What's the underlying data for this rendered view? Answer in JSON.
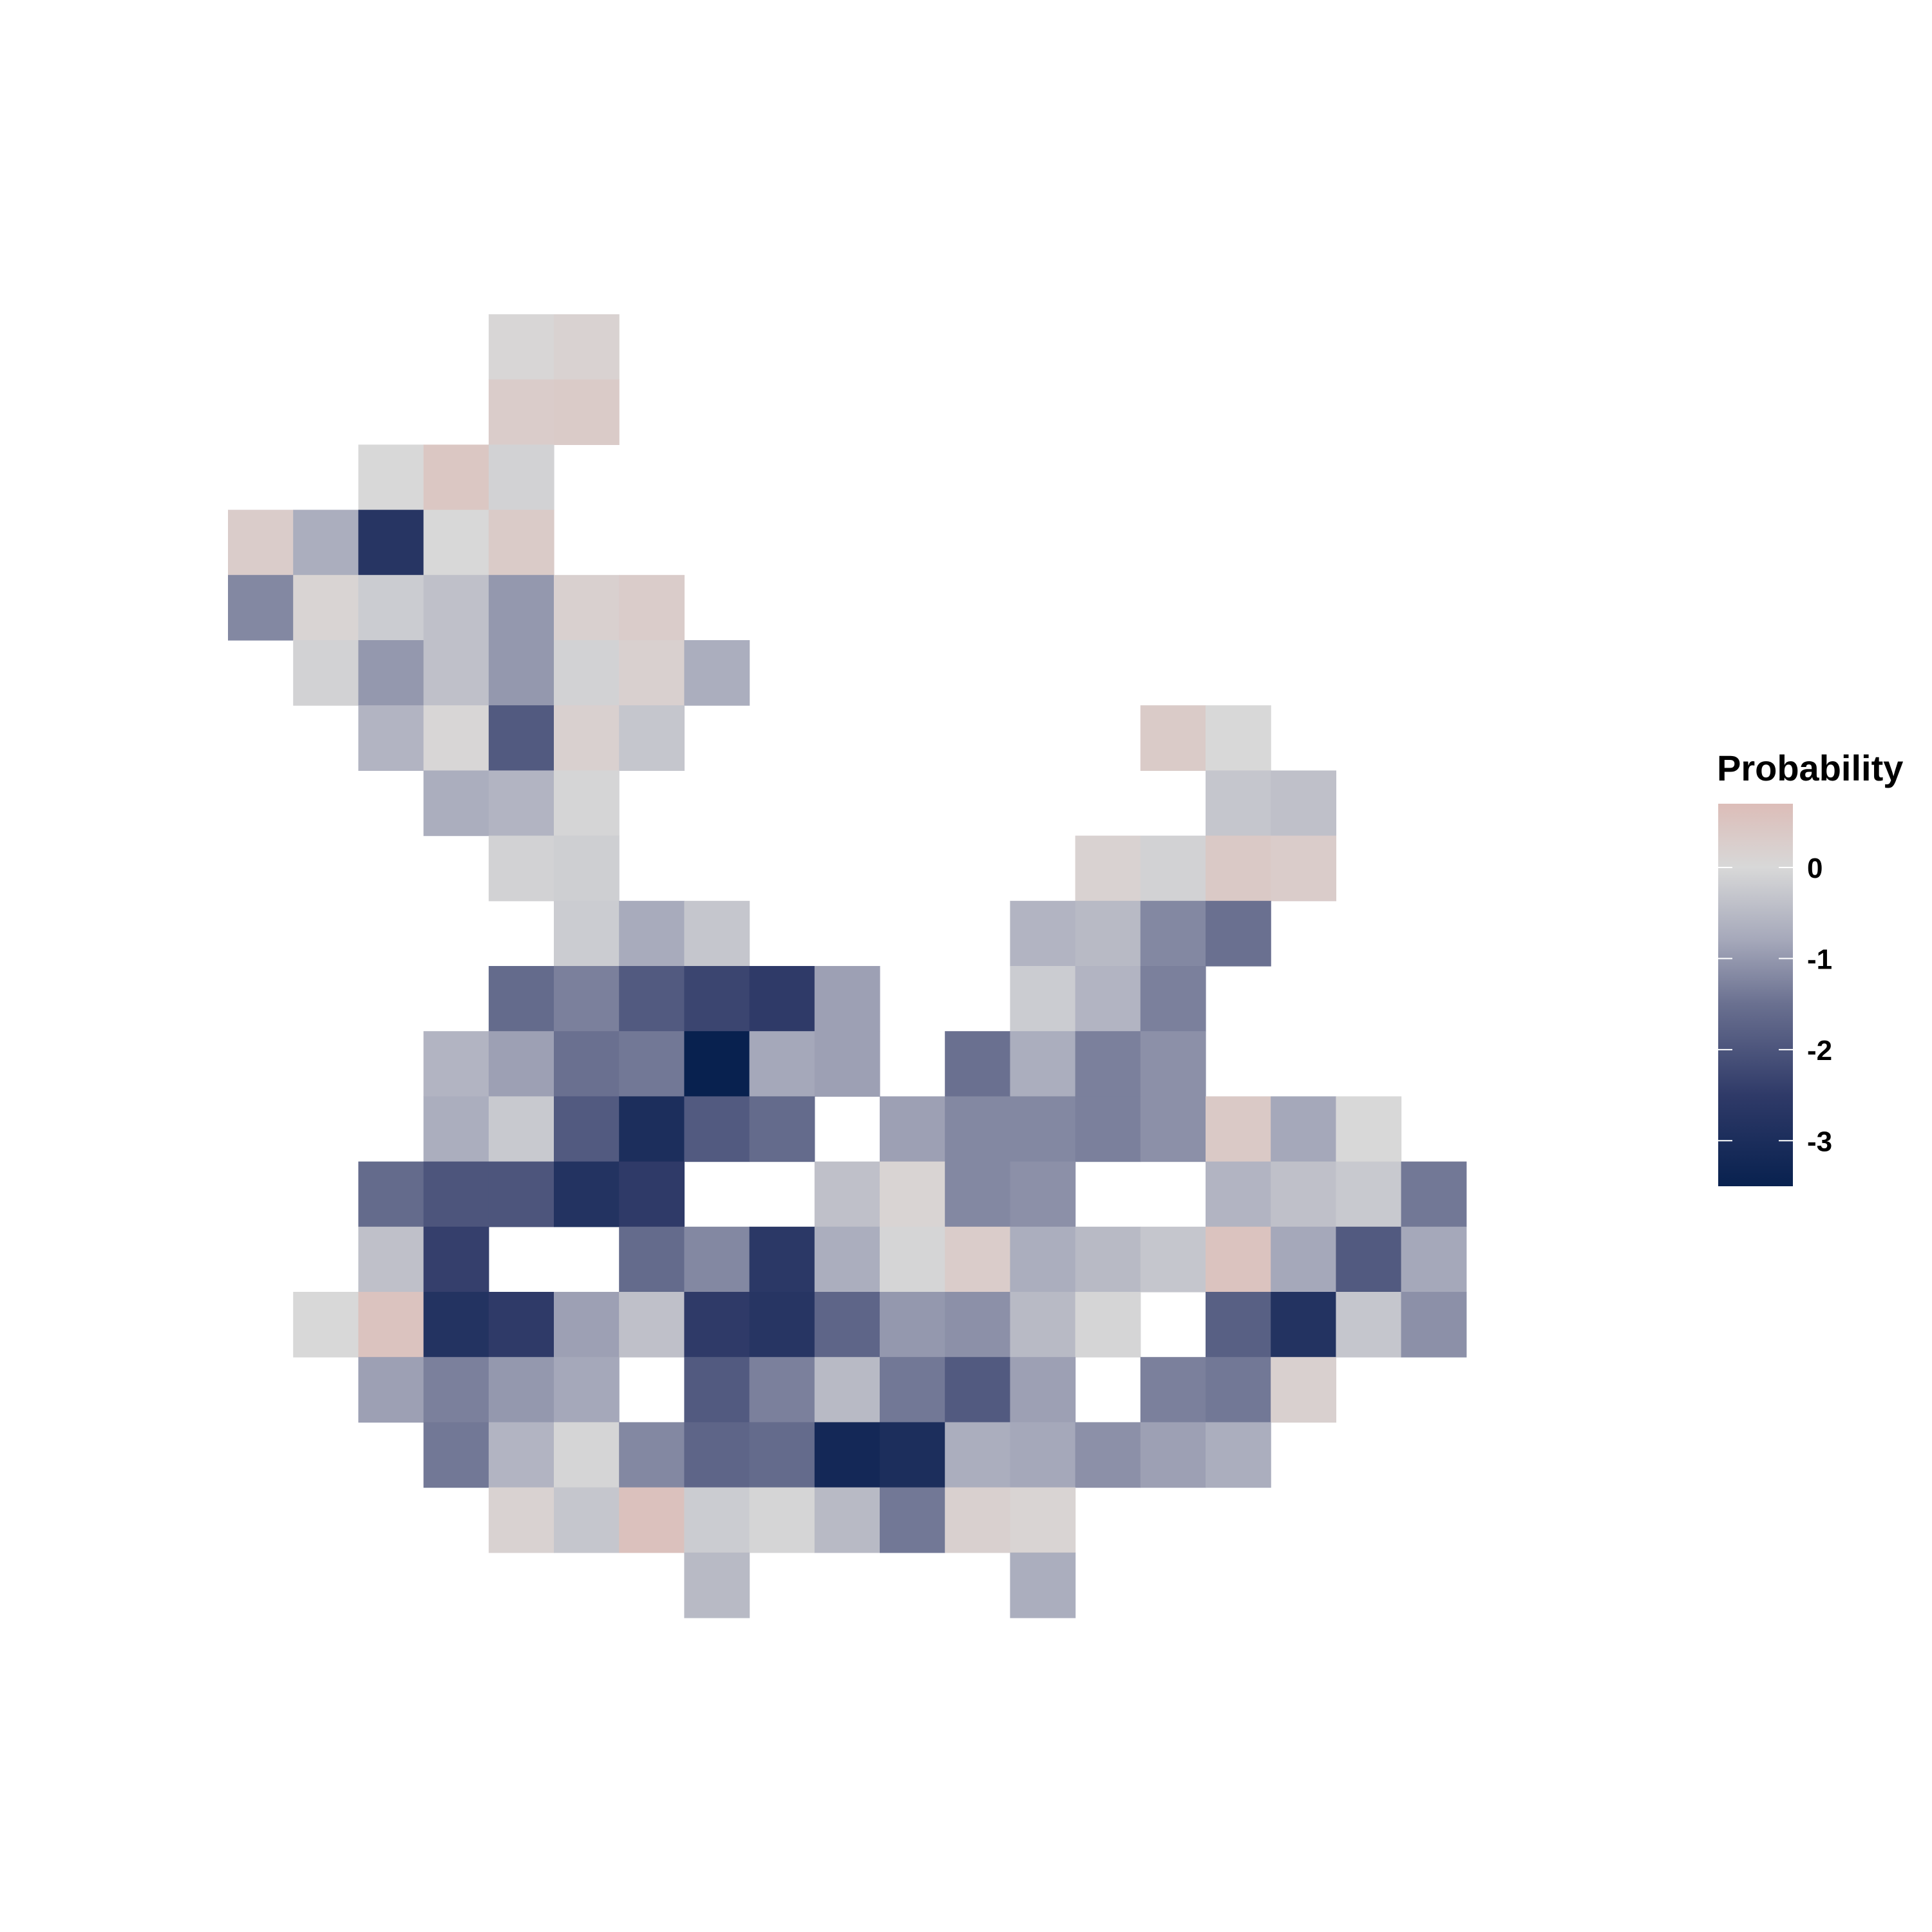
{
  "chart_data": {
    "type": "heatmap",
    "title": "",
    "xlabel": "",
    "ylabel": "",
    "legend": {
      "title": "Probability",
      "position": "right",
      "ticks": [
        {
          "value": 0,
          "label": "0"
        },
        {
          "value": -1,
          "label": "-1"
        },
        {
          "value": -2,
          "label": "-2"
        },
        {
          "value": -3,
          "label": "-3"
        }
      ],
      "range": [
        -3.5,
        0.7
      ]
    },
    "color_scale": [
      {
        "value": -3.5,
        "color": "#08214f"
      },
      {
        "value": -2.5,
        "color": "#2f3a68"
      },
      {
        "value": -1.5,
        "color": "#6a7090"
      },
      {
        "value": -0.8,
        "color": "#a5a8ba"
      },
      {
        "value": 0.0,
        "color": "#d8d8d8"
      },
      {
        "value": 0.7,
        "color": "#dcbdb8"
      }
    ],
    "grid_size": {
      "cols": 19,
      "rows": 20
    },
    "cells": [
      [
        4,
        0,
        0.05
      ],
      [
        5,
        0,
        0.15
      ],
      [
        4,
        1,
        0.3
      ],
      [
        5,
        1,
        0.35
      ],
      [
        2,
        2,
        0.0
      ],
      [
        3,
        2,
        0.45
      ],
      [
        4,
        2,
        -0.1
      ],
      [
        0,
        3,
        0.3
      ],
      [
        1,
        3,
        -0.7
      ],
      [
        2,
        3,
        -2.7
      ],
      [
        3,
        3,
        0.0
      ],
      [
        4,
        3,
        0.35
      ],
      [
        0,
        4,
        -1.2
      ],
      [
        1,
        4,
        0.1
      ],
      [
        2,
        4,
        -0.2
      ],
      [
        3,
        4,
        -0.4
      ],
      [
        4,
        4,
        -1.0
      ],
      [
        5,
        4,
        0.2
      ],
      [
        6,
        4,
        0.3
      ],
      [
        1,
        5,
        -0.1
      ],
      [
        2,
        5,
        -1.0
      ],
      [
        3,
        5,
        -0.4
      ],
      [
        4,
        5,
        -1.0
      ],
      [
        5,
        5,
        -0.1
      ],
      [
        6,
        5,
        0.2
      ],
      [
        7,
        5,
        -0.7
      ],
      [
        2,
        6,
        -0.6
      ],
      [
        3,
        6,
        0.05
      ],
      [
        4,
        6,
        -1.9
      ],
      [
        5,
        6,
        0.2
      ],
      [
        6,
        6,
        -0.3
      ],
      [
        14,
        6,
        0.35
      ],
      [
        15,
        6,
        0.0
      ],
      [
        3,
        7,
        -0.7
      ],
      [
        4,
        7,
        -0.6
      ],
      [
        5,
        7,
        -0.05
      ],
      [
        15,
        7,
        -0.3
      ],
      [
        16,
        7,
        -0.4
      ],
      [
        4,
        8,
        -0.1
      ],
      [
        5,
        8,
        -0.15
      ],
      [
        13,
        8,
        0.15
      ],
      [
        14,
        8,
        -0.1
      ],
      [
        15,
        8,
        0.4
      ],
      [
        16,
        8,
        0.3
      ],
      [
        5,
        9,
        -0.2
      ],
      [
        6,
        9,
        -0.75
      ],
      [
        7,
        9,
        -0.3
      ],
      [
        12,
        9,
        -0.6
      ],
      [
        13,
        9,
        -0.5
      ],
      [
        14,
        9,
        -1.2
      ],
      [
        15,
        9,
        -1.5
      ],
      [
        4,
        10,
        -1.6
      ],
      [
        5,
        10,
        -1.3
      ],
      [
        6,
        10,
        -1.9
      ],
      [
        7,
        10,
        -2.3
      ],
      [
        8,
        10,
        -2.5
      ],
      [
        9,
        10,
        -0.9
      ],
      [
        12,
        10,
        -0.2
      ],
      [
        13,
        10,
        -0.6
      ],
      [
        14,
        10,
        -1.3
      ],
      [
        3,
        11,
        -0.6
      ],
      [
        4,
        11,
        -0.9
      ],
      [
        5,
        11,
        -1.5
      ],
      [
        6,
        11,
        -1.4
      ],
      [
        7,
        11,
        -3.5
      ],
      [
        8,
        11,
        -0.8
      ],
      [
        9,
        11,
        -0.9
      ],
      [
        11,
        11,
        -1.5
      ],
      [
        12,
        11,
        -0.7
      ],
      [
        13,
        11,
        -1.3
      ],
      [
        14,
        11,
        -1.1
      ],
      [
        3,
        12,
        -0.7
      ],
      [
        4,
        12,
        -0.25
      ],
      [
        5,
        12,
        -1.9
      ],
      [
        6,
        12,
        -3.0
      ],
      [
        7,
        12,
        -1.9
      ],
      [
        8,
        12,
        -1.6
      ],
      [
        10,
        12,
        -0.9
      ],
      [
        11,
        12,
        -1.2
      ],
      [
        12,
        12,
        -1.2
      ],
      [
        13,
        12,
        -1.3
      ],
      [
        14,
        12,
        -1.1
      ],
      [
        15,
        12,
        0.4
      ],
      [
        16,
        12,
        -0.8
      ],
      [
        17,
        12,
        0.0
      ],
      [
        2,
        13,
        -1.6
      ],
      [
        3,
        13,
        -2.0
      ],
      [
        4,
        13,
        -2.0
      ],
      [
        5,
        13,
        -2.8
      ],
      [
        6,
        13,
        -2.5
      ],
      [
        9,
        13,
        -0.4
      ],
      [
        10,
        13,
        0.1
      ],
      [
        11,
        13,
        -1.2
      ],
      [
        12,
        13,
        -1.1
      ],
      [
        15,
        13,
        -0.6
      ],
      [
        16,
        13,
        -0.4
      ],
      [
        17,
        13,
        -0.25
      ],
      [
        18,
        13,
        -1.4
      ],
      [
        2,
        14,
        -0.4
      ],
      [
        3,
        14,
        -2.4
      ],
      [
        6,
        14,
        -1.6
      ],
      [
        7,
        14,
        -1.2
      ],
      [
        8,
        14,
        -2.6
      ],
      [
        9,
        14,
        -0.7
      ],
      [
        10,
        14,
        -0.05
      ],
      [
        11,
        14,
        0.3
      ],
      [
        12,
        14,
        -0.7
      ],
      [
        13,
        14,
        -0.5
      ],
      [
        14,
        14,
        -0.3
      ],
      [
        15,
        14,
        0.55
      ],
      [
        16,
        14,
        -0.8
      ],
      [
        17,
        14,
        -1.9
      ],
      [
        18,
        14,
        -0.8
      ],
      [
        1,
        15,
        0.0
      ],
      [
        2,
        15,
        0.55
      ],
      [
        3,
        15,
        -2.8
      ],
      [
        4,
        15,
        -2.5
      ],
      [
        5,
        15,
        -0.9
      ],
      [
        6,
        15,
        -0.4
      ],
      [
        7,
        15,
        -2.5
      ],
      [
        8,
        15,
        -2.7
      ],
      [
        9,
        15,
        -1.7
      ],
      [
        10,
        15,
        -1.0
      ],
      [
        11,
        15,
        -1.1
      ],
      [
        12,
        15,
        -0.5
      ],
      [
        13,
        15,
        -0.05
      ],
      [
        15,
        15,
        -1.8
      ],
      [
        16,
        15,
        -2.8
      ],
      [
        17,
        15,
        -0.3
      ],
      [
        18,
        15,
        -1.1
      ],
      [
        2,
        16,
        -0.9
      ],
      [
        3,
        16,
        -1.3
      ],
      [
        4,
        16,
        -1.0
      ],
      [
        5,
        16,
        -0.8
      ],
      [
        7,
        16,
        -1.9
      ],
      [
        8,
        16,
        -1.3
      ],
      [
        9,
        16,
        -0.5
      ],
      [
        10,
        16,
        -1.4
      ],
      [
        11,
        16,
        -1.9
      ],
      [
        12,
        16,
        -0.9
      ],
      [
        14,
        16,
        -1.3
      ],
      [
        15,
        16,
        -1.4
      ],
      [
        16,
        16,
        0.2
      ],
      [
        3,
        17,
        -1.4
      ],
      [
        4,
        17,
        -0.6
      ],
      [
        5,
        17,
        -0.05
      ],
      [
        6,
        17,
        -1.2
      ],
      [
        7,
        17,
        -1.7
      ],
      [
        8,
        17,
        -1.6
      ],
      [
        9,
        17,
        -3.2
      ],
      [
        10,
        17,
        -3.0
      ],
      [
        11,
        17,
        -0.7
      ],
      [
        12,
        17,
        -0.8
      ],
      [
        13,
        17,
        -1.1
      ],
      [
        14,
        17,
        -0.9
      ],
      [
        15,
        17,
        -0.7
      ],
      [
        4,
        18,
        0.15
      ],
      [
        5,
        18,
        -0.3
      ],
      [
        6,
        18,
        0.6
      ],
      [
        7,
        18,
        -0.2
      ],
      [
        8,
        18,
        -0.05
      ],
      [
        9,
        18,
        -0.5
      ],
      [
        10,
        18,
        -1.4
      ],
      [
        11,
        18,
        0.2
      ],
      [
        12,
        18,
        0.1
      ],
      [
        7,
        19,
        -0.5
      ],
      [
        12,
        19,
        -0.7
      ]
    ]
  }
}
